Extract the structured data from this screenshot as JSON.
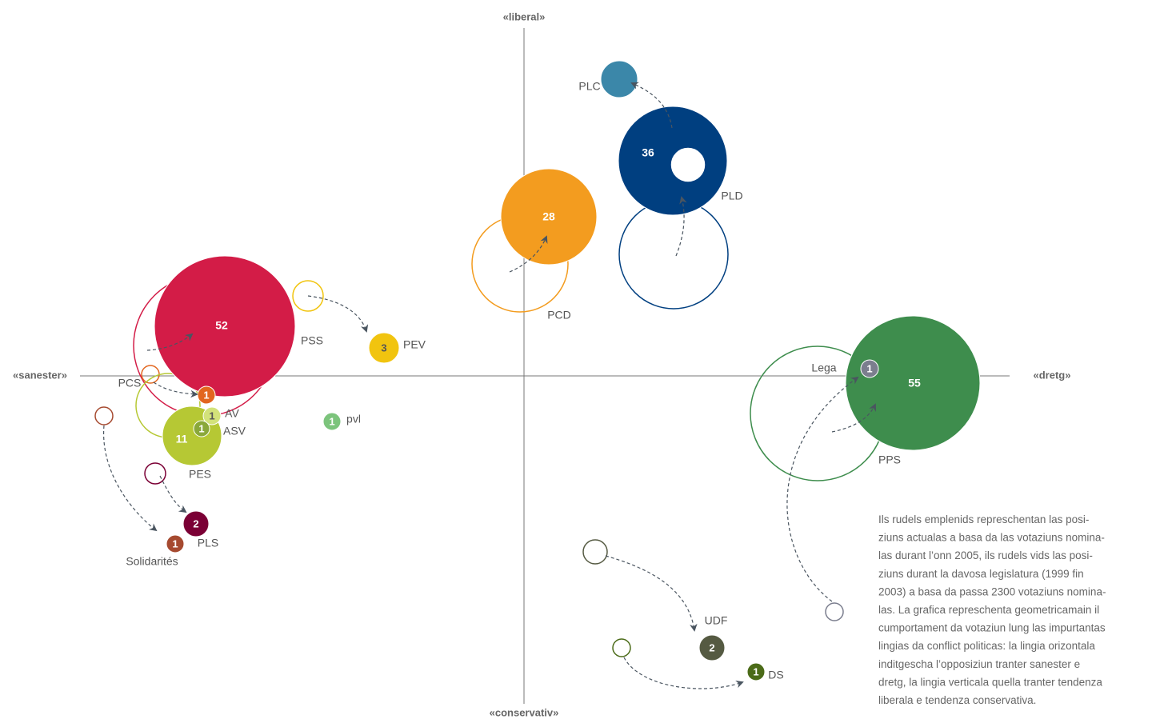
{
  "axes": {
    "top": "«liberal»",
    "bottom": "«conservativ»",
    "left": "«sanester»",
    "right": "«dretg»"
  },
  "parties": [
    {
      "name": "PLC",
      "color": "#3b87a9"
    },
    {
      "name": "PLD",
      "seats": 36,
      "color": "#003f80"
    },
    {
      "name": "PCD",
      "seats": 28,
      "color": "#f39c1f"
    },
    {
      "name": "PSS",
      "seats": 52,
      "color": "#d31c47"
    },
    {
      "name": "PEV",
      "seats": 3,
      "color": "#f1c40f"
    },
    {
      "name": "PCS",
      "seats": 1,
      "color": "#e2661f"
    },
    {
      "name": "AV",
      "seats": 1,
      "color": "#d3e27a"
    },
    {
      "name": "ASV",
      "seats": 1,
      "color": "#8aa83a"
    },
    {
      "name": "PES",
      "seats": 11,
      "color": "#b6c834"
    },
    {
      "name": "pvl",
      "seats": 1,
      "color": "#7cc47c"
    },
    {
      "name": "PLS",
      "seats": 2,
      "color": "#7b0035"
    },
    {
      "name": "Solidarités",
      "seats": 1,
      "color": "#a64a30"
    },
    {
      "name": "Lega",
      "seats": 1,
      "color": "#7b7e8e"
    },
    {
      "name": "PPS",
      "seats": 55,
      "color": "#3e8d4d"
    },
    {
      "name": "UDF",
      "seats": 2,
      "color": "#555a42"
    },
    {
      "name": "DS",
      "seats": 1,
      "color": "#4b6b18"
    }
  ],
  "note_lines": [
    "Ils rudels emplenids represchentan las posi-",
    "ziuns actualas a basa da las votaziuns nomina-",
    "las durant l’onn 2005, ils rudels vids las posi-",
    "ziuns durant la davosa legislatura (1999 fin",
    "2003) a basa da passa 2300 votaziuns nomina-",
    "las. La grafica represchenta geometricamain il",
    "cumportament da votaziun lung las impurtantas",
    "lingias da conflict politicas: la lingia orizontala",
    "inditgescha l’opposiziun tranter sanester e",
    "dretg, la lingia verticala quella tranter tendenza",
    "liberala e tendenza conservativa."
  ]
}
